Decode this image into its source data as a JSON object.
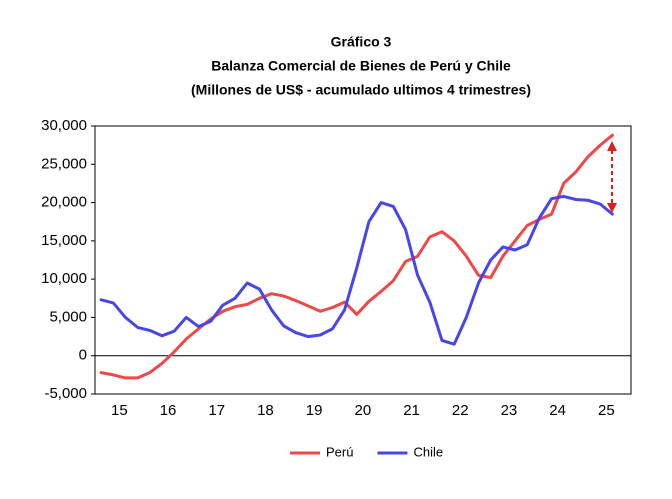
{
  "chart_data": {
    "type": "line",
    "title": "Gráfico 3",
    "subtitle": "Balanza Comercial de Bienes de Perú y Chile",
    "note": "(Millones de US$ - acumulado ultimos 4 trimestres)",
    "categories": [
      null,
      "15",
      null,
      null,
      null,
      "16",
      null,
      null,
      null,
      "17",
      null,
      null,
      null,
      "18",
      null,
      null,
      null,
      "19",
      null,
      null,
      null,
      "20",
      null,
      null,
      null,
      "21",
      null,
      null,
      null,
      "22",
      null,
      null,
      null,
      "23",
      null,
      null,
      null,
      "24",
      null,
      null,
      null,
      "25",
      null
    ],
    "series": [
      {
        "name": "Perú",
        "color": "#f04747",
        "values": [
          -2200,
          -2500,
          -2900,
          -2900,
          -2200,
          -1000,
          500,
          2200,
          3500,
          4800,
          5800,
          6400,
          6700,
          7500,
          8100,
          7800,
          7200,
          6500,
          5800,
          6300,
          7000,
          5400,
          7100,
          8400,
          9800,
          12300,
          13000,
          15500,
          16200,
          15000,
          13000,
          10500,
          10200,
          13000,
          15000,
          17000,
          17800,
          18500,
          22500,
          24000,
          26000,
          27500,
          28800
        ]
      },
      {
        "name": "Chile",
        "color": "#4646ea",
        "values": [
          7300,
          6900,
          5000,
          3700,
          3300,
          2600,
          3200,
          5000,
          3800,
          4500,
          6600,
          7500,
          9500,
          8700,
          6000,
          3900,
          3000,
          2500,
          2700,
          3500,
          6000,
          11500,
          17500,
          20000,
          19500,
          16500,
          10500,
          7000,
          2000,
          1500,
          5000,
          9500,
          12500,
          14200,
          13800,
          14500,
          18000,
          20500,
          20800,
          20400,
          20300,
          19800,
          18500
        ]
      }
    ],
    "ylim": [
      -5000,
      30000
    ],
    "yticks": [
      {
        "value": -5000,
        "label": "-5,000"
      },
      0,
      {
        "value": 5000,
        "label": "5,000"
      },
      {
        "value": 10000,
        "label": "10,000"
      },
      {
        "value": 15000,
        "label": "15,000"
      },
      {
        "value": 20000,
        "label": "20,000"
      },
      {
        "value": 25000,
        "label": "25,000"
      },
      {
        "value": 30000,
        "label": "30,000"
      }
    ],
    "legend": "bottom"
  }
}
